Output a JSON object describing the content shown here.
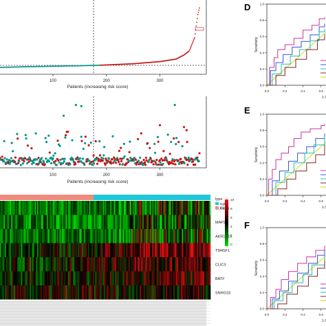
{
  "panels": {
    "d": "D",
    "e": "E",
    "f": "F"
  },
  "colors": {
    "low": "#00968a",
    "high": "#c81414",
    "type_low": "#f08a80",
    "type_high": "#1ec8d8",
    "heat_low": "#00dd00",
    "heat_mid": "#000000",
    "heat_high": "#ee1010",
    "roc_ref": "#c8d800"
  },
  "chart_data": [
    {
      "type": "scatter",
      "id": "risk-score-plot",
      "xlabel": "Patients (increasing risk score)",
      "x_ticks": [
        "100",
        "200",
        "300"
      ],
      "cutoff_x": 187,
      "n_patients": 374,
      "risk_curve": [
        {
          "x": 1,
          "y": 0.0
        },
        {
          "x": 50,
          "y": 0.04
        },
        {
          "x": 100,
          "y": 0.07
        },
        {
          "x": 150,
          "y": 0.1
        },
        {
          "x": 187,
          "y": 0.13
        },
        {
          "x": 250,
          "y": 0.22
        },
        {
          "x": 300,
          "y": 0.35
        },
        {
          "x": 330,
          "y": 0.5
        },
        {
          "x": 345,
          "y": 0.75
        },
        {
          "x": 355,
          "y": 1.0
        },
        {
          "x": 365,
          "y": 1.8
        },
        {
          "x": 371,
          "y": 3.2
        },
        {
          "x": 374,
          "y": 3.6
        }
      ]
    },
    {
      "type": "scatter",
      "id": "survival-status-plot",
      "xlabel": "Patients (increasing risk score)",
      "x_ticks": [
        "100",
        "200",
        "300"
      ],
      "cutoff_x": 187,
      "notable_points": [
        {
          "x": 143,
          "y": 0.95,
          "group": "low"
        },
        {
          "x": 153,
          "y": 0.93,
          "group": "low"
        },
        {
          "x": 328,
          "y": 0.95,
          "group": "low"
        },
        {
          "x": 120,
          "y": 0.78,
          "group": "low"
        },
        {
          "x": 345,
          "y": 0.6,
          "group": "high"
        },
        {
          "x": 350,
          "y": 0.55,
          "group": "high"
        },
        {
          "x": 300,
          "y": 0.63,
          "group": "high"
        },
        {
          "x": 265,
          "y": 0.5,
          "group": "high"
        }
      ]
    },
    {
      "type": "heatmap",
      "id": "gene-expression-heatmap",
      "genes": [
        "SLC1A6",
        "MAP2",
        "AKR1B15",
        "TM4SF1",
        "CLIC3",
        "BATF",
        "SNHG18"
      ],
      "legend_title": "type",
      "legend_items": [
        "high",
        "low"
      ],
      "scale_ticks": [
        "10",
        "8",
        "6",
        "4",
        "2",
        "0"
      ],
      "gene_trend": [
        -0.6,
        -0.2,
        -0.4,
        0.5,
        0.3,
        0.2,
        0.1
      ]
    },
    {
      "type": "line",
      "id": "roc-d",
      "panel": "D",
      "xlabel": "1-Specificity",
      "ylabel": "Sensitivity",
      "x_ticks": [
        "0.0",
        "0.2",
        "0.4",
        "0.6",
        "0.8"
      ],
      "y_ticks": [
        "0.0",
        "0.2",
        "0.4",
        "0.6",
        "0.8",
        "1.0"
      ],
      "series": [
        {
          "color": "#cc3399",
          "points": [
            [
              0,
              0
            ],
            [
              0.03,
              0.22
            ],
            [
              0.08,
              0.34
            ],
            [
              0.12,
              0.44
            ],
            [
              0.2,
              0.5
            ],
            [
              0.3,
              0.58
            ],
            [
              0.4,
              0.68
            ],
            [
              0.5,
              0.74
            ],
            [
              0.58,
              0.82
            ],
            [
              0.64,
              0.84
            ]
          ]
        },
        {
          "color": "#3355dd",
          "points": [
            [
              0,
              0
            ],
            [
              0.04,
              0.18
            ],
            [
              0.1,
              0.28
            ],
            [
              0.18,
              0.38
            ],
            [
              0.28,
              0.47
            ],
            [
              0.38,
              0.54
            ],
            [
              0.48,
              0.62
            ],
            [
              0.58,
              0.72
            ],
            [
              0.64,
              0.76
            ]
          ]
        },
        {
          "color": "#22bbbb",
          "points": [
            [
              0,
              0
            ],
            [
              0.06,
              0.14
            ],
            [
              0.16,
              0.26
            ],
            [
              0.26,
              0.36
            ],
            [
              0.36,
              0.44
            ],
            [
              0.48,
              0.55
            ],
            [
              0.58,
              0.66
            ],
            [
              0.64,
              0.7
            ]
          ]
        },
        {
          "color": "#8b2323",
          "points": [
            [
              0,
              0
            ],
            [
              0.1,
              0.12
            ],
            [
              0.2,
              0.22
            ],
            [
              0.32,
              0.32
            ],
            [
              0.44,
              0.44
            ],
            [
              0.56,
              0.56
            ],
            [
              0.64,
              0.63
            ]
          ]
        }
      ]
    },
    {
      "type": "line",
      "id": "roc-e",
      "panel": "E",
      "xlabel": "1-Specificity",
      "ylabel": "Sensitivity",
      "x_ticks": [
        "0.0",
        "0.2",
        "0.4",
        "0.6",
        "0.8"
      ],
      "y_ticks": [
        "0.0",
        "0.2",
        "0.4",
        "0.6",
        "0.8",
        "1.0"
      ],
      "series": [
        {
          "color": "#cc3399",
          "points": [
            [
              0,
              0
            ],
            [
              0.02,
              0.2
            ],
            [
              0.06,
              0.32
            ],
            [
              0.1,
              0.44
            ],
            [
              0.16,
              0.52
            ],
            [
              0.24,
              0.6
            ],
            [
              0.3,
              0.7
            ],
            [
              0.38,
              0.78
            ],
            [
              0.48,
              0.82
            ],
            [
              0.6,
              0.86
            ],
            [
              0.64,
              0.88
            ]
          ]
        },
        {
          "color": "#3355dd",
          "points": [
            [
              0,
              0
            ],
            [
              0.06,
              0.18
            ],
            [
              0.14,
              0.3
            ],
            [
              0.24,
              0.42
            ],
            [
              0.34,
              0.52
            ],
            [
              0.44,
              0.6
            ],
            [
              0.54,
              0.7
            ],
            [
              0.64,
              0.76
            ]
          ]
        },
        {
          "color": "#22bbbb",
          "points": [
            [
              0,
              0
            ],
            [
              0.1,
              0.16
            ],
            [
              0.2,
              0.28
            ],
            [
              0.3,
              0.4
            ],
            [
              0.42,
              0.52
            ],
            [
              0.52,
              0.62
            ],
            [
              0.64,
              0.72
            ]
          ]
        },
        {
          "color": "#8b2323",
          "points": [
            [
              0,
              0
            ],
            [
              0.12,
              0.08
            ],
            [
              0.22,
              0.2
            ],
            [
              0.32,
              0.3
            ],
            [
              0.44,
              0.4
            ],
            [
              0.54,
              0.5
            ],
            [
              0.64,
              0.62
            ]
          ]
        }
      ]
    },
    {
      "type": "line",
      "id": "roc-f",
      "panel": "F",
      "xlabel": "1-Specificity",
      "ylabel": "Sensitivity",
      "x_ticks": [
        "0.0",
        "0.2",
        "0.4",
        "0.6",
        "0.8"
      ],
      "y_ticks": [
        "0.0",
        "0.2",
        "0.4",
        "0.6",
        "0.8",
        "1.0"
      ],
      "series": [
        {
          "color": "#cc3399",
          "points": [
            [
              0,
              0
            ],
            [
              0.04,
              0.14
            ],
            [
              0.1,
              0.24
            ],
            [
              0.16,
              0.36
            ],
            [
              0.24,
              0.46
            ],
            [
              0.34,
              0.56
            ],
            [
              0.44,
              0.64
            ],
            [
              0.54,
              0.72
            ],
            [
              0.64,
              0.78
            ]
          ]
        },
        {
          "color": "#3355dd",
          "points": [
            [
              0,
              0
            ],
            [
              0.06,
              0.12
            ],
            [
              0.14,
              0.22
            ],
            [
              0.24,
              0.34
            ],
            [
              0.34,
              0.44
            ],
            [
              0.46,
              0.56
            ],
            [
              0.56,
              0.66
            ],
            [
              0.64,
              0.72
            ]
          ]
        },
        {
          "color": "#22bbbb",
          "points": [
            [
              0,
              0
            ],
            [
              0.08,
              0.1
            ],
            [
              0.18,
              0.2
            ],
            [
              0.28,
              0.32
            ],
            [
              0.4,
              0.42
            ],
            [
              0.5,
              0.54
            ],
            [
              0.64,
              0.66
            ]
          ]
        },
        {
          "color": "#8b2323",
          "points": [
            [
              0,
              0
            ],
            [
              0.12,
              0.06
            ],
            [
              0.22,
              0.18
            ],
            [
              0.34,
              0.28
            ],
            [
              0.46,
              0.4
            ],
            [
              0.56,
              0.5
            ],
            [
              0.64,
              0.6
            ]
          ]
        }
      ]
    }
  ]
}
